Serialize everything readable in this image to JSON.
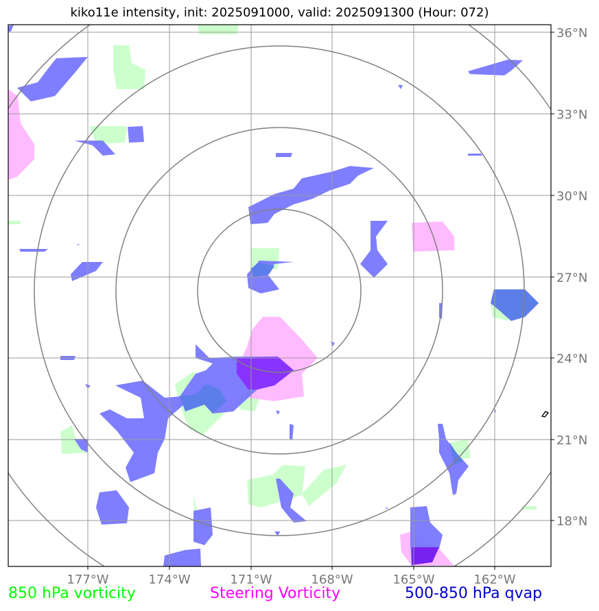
{
  "title": "kiko11e intensity, init: 2025091000, valid: 2025091300 (Hour: 072)",
  "lat_labels": [
    "36°N",
    "33°N",
    "30°N",
    "27°N",
    "24°N",
    "21°N",
    "18°N"
  ],
  "lon_labels": [
    "177°W",
    "174°W",
    "171°W",
    "168°W",
    "165°W",
    "162°W"
  ],
  "legend": {
    "vort850": {
      "label": "850 hPa vorticity",
      "color": "#00ff00"
    },
    "steering": {
      "label": "Steering Vorticity",
      "color": "#ff00ff"
    },
    "qvap": {
      "label": "500-850 hPa qvap",
      "color": "#0000cc"
    }
  },
  "colors": {
    "grid": "#999999",
    "range_ring": "#808080",
    "fill_850_vorticity": "#ccffcc",
    "fill_steering_vorticity": "#ffbbff",
    "fill_qvap": "#7777ff"
  }
}
